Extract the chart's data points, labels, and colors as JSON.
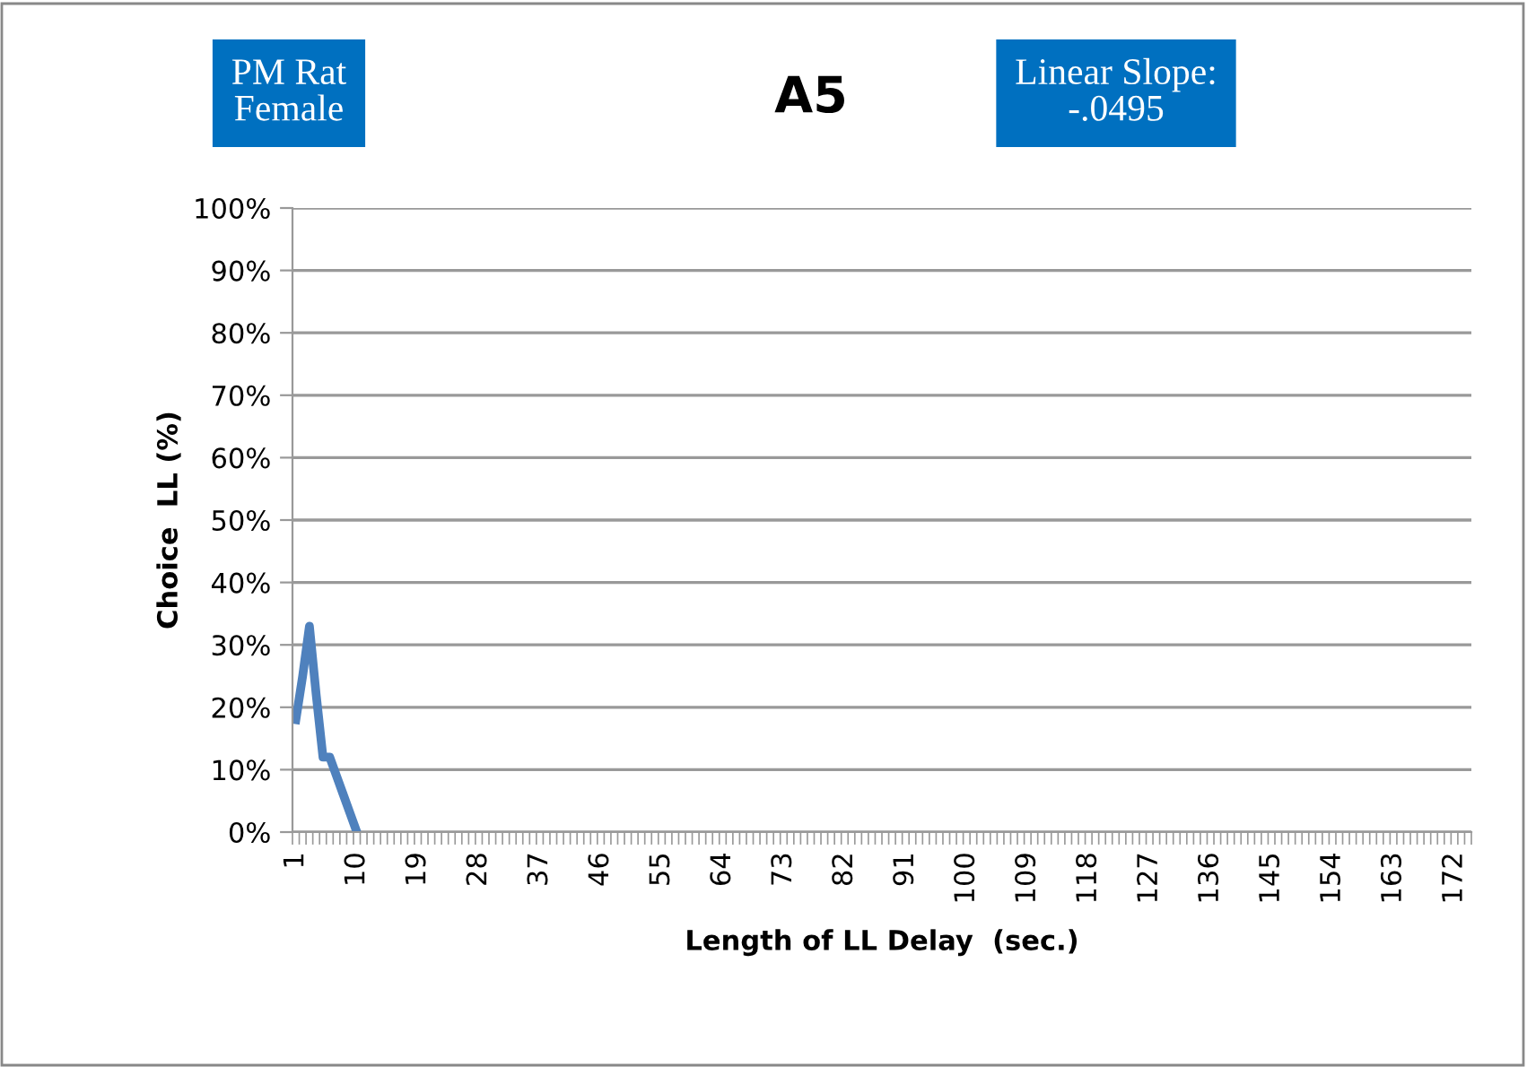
{
  "chart_data": {
    "type": "line",
    "title": "A5",
    "xlabel": "Length of LL Delay  (sec.)",
    "ylabel": "Choice  LL (%)",
    "annotations": [
      "PM Rat\nFemale",
      "Linear Slope:\n-.0495"
    ],
    "categories": [
      "1",
      null,
      null,
      null,
      null,
      null,
      null,
      null,
      null,
      "10",
      null,
      null,
      null,
      null,
      null,
      null,
      null,
      null,
      "19",
      null,
      null,
      null,
      null,
      null,
      null,
      null,
      null,
      "28",
      null,
      null,
      null,
      null,
      null,
      null,
      null,
      null,
      "37",
      null,
      null,
      null,
      null,
      null,
      null,
      null,
      null,
      "46",
      null,
      null,
      null,
      null,
      null,
      null,
      null,
      null,
      "55",
      null,
      null,
      null,
      null,
      null,
      null,
      null,
      null,
      "64",
      null,
      null,
      null,
      null,
      null,
      null,
      null,
      null,
      "73",
      null,
      null,
      null,
      null,
      null,
      null,
      null,
      null,
      "82",
      null,
      null,
      null,
      null,
      null,
      null,
      null,
      null,
      "91",
      null,
      null,
      null,
      null,
      null,
      null,
      null,
      null,
      "100",
      null,
      null,
      null,
      null,
      null,
      null,
      null,
      null,
      "109",
      null,
      null,
      null,
      null,
      null,
      null,
      null,
      null,
      "118",
      null,
      null,
      null,
      null,
      null,
      null,
      null,
      null,
      "127",
      null,
      null,
      null,
      null,
      null,
      null,
      null,
      null,
      "136",
      null,
      null,
      null,
      null,
      null,
      null,
      null,
      null,
      "145",
      null,
      null,
      null,
      null,
      null,
      null,
      null,
      null,
      "154",
      null,
      null,
      null,
      null,
      null,
      null,
      null,
      null,
      "163",
      null,
      null,
      null,
      null,
      null,
      null,
      null,
      null,
      "172",
      null,
      null
    ],
    "series": [
      {
        "color": "#4f81bd",
        "values": [
          18,
          25,
          33,
          22,
          12,
          12,
          9,
          6,
          3,
          0,
          null,
          null,
          null,
          null,
          null,
          null,
          null,
          null,
          null,
          null,
          null,
          null,
          null,
          null,
          null,
          null,
          null,
          null,
          null,
          null,
          null,
          null,
          null,
          null,
          null,
          null,
          null,
          null,
          null,
          null,
          null,
          null,
          null,
          null,
          null,
          null,
          null,
          null,
          null,
          null,
          null,
          null,
          null,
          null,
          null,
          null,
          null,
          null,
          null,
          null,
          null,
          null,
          null,
          null,
          null,
          null,
          null,
          null,
          null,
          null,
          null,
          null,
          null,
          null,
          null,
          null,
          null,
          null,
          null,
          null,
          null,
          null,
          null,
          null,
          null,
          null,
          null,
          null,
          null,
          null,
          null,
          null,
          null,
          null,
          null,
          null,
          null,
          null,
          null,
          null,
          null,
          null,
          null,
          null,
          null,
          null,
          null,
          null,
          null,
          null,
          null,
          null,
          null,
          null,
          null,
          null,
          null,
          null,
          null,
          null,
          null,
          null,
          null,
          null,
          null,
          null,
          null,
          null,
          null,
          null,
          null,
          null,
          null,
          null,
          null,
          null,
          null,
          null,
          null,
          null,
          null,
          null,
          null,
          null,
          null,
          null,
          null,
          null,
          null,
          null,
          null,
          null,
          null,
          null,
          null,
          null,
          null,
          null,
          null,
          null,
          null,
          null,
          null,
          null,
          null,
          null,
          null,
          null,
          null,
          null,
          null,
          null,
          null,
          null
        ]
      }
    ],
    "ylim": [
      0,
      100
    ],
    "yticks": [
      {
        "value": 0,
        "label": "0%"
      },
      {
        "value": 10,
        "label": "10%"
      },
      {
        "value": 20,
        "label": "20%"
      },
      {
        "value": 30,
        "label": "30%"
      },
      {
        "value": 40,
        "label": "40%"
      },
      {
        "value": 50,
        "label": "50%"
      },
      {
        "value": 60,
        "label": "60%"
      },
      {
        "value": 70,
        "label": "70%"
      },
      {
        "value": 80,
        "label": "80%"
      },
      {
        "value": 90,
        "label": "90%"
      },
      {
        "value": 100,
        "label": "100%"
      }
    ],
    "grid": "y",
    "legend": false,
    "marker": "none",
    "line_style": "solid"
  }
}
